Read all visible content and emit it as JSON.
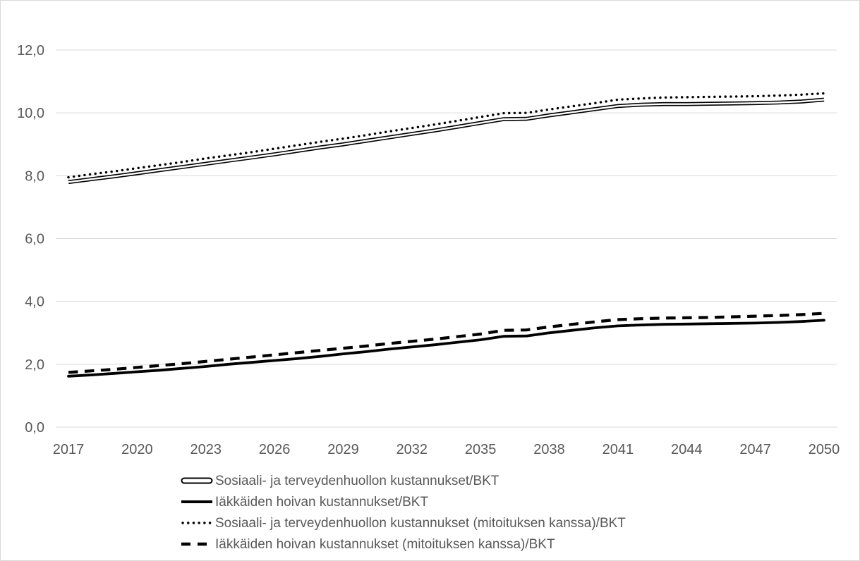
{
  "chart_data": {
    "type": "line",
    "title": "",
    "xlabel": "",
    "ylabel": "",
    "x": [
      2017,
      2018,
      2019,
      2020,
      2021,
      2022,
      2023,
      2024,
      2025,
      2026,
      2027,
      2028,
      2029,
      2030,
      2031,
      2032,
      2033,
      2034,
      2035,
      2036,
      2037,
      2038,
      2039,
      2040,
      2041,
      2042,
      2043,
      2044,
      2045,
      2046,
      2047,
      2048,
      2049,
      2050
    ],
    "x_ticks": [
      2017,
      2020,
      2023,
      2026,
      2029,
      2032,
      2035,
      2038,
      2041,
      2044,
      2047,
      2050
    ],
    "x_tick_labels": [
      "2017",
      "2020",
      "2023",
      "2026",
      "2029",
      "2032",
      "2035",
      "2038",
      "2041",
      "2044",
      "2047",
      "2050"
    ],
    "y_ticks": [
      0,
      2,
      4,
      6,
      8,
      10,
      12
    ],
    "y_tick_labels": [
      "0,0",
      "2,0",
      "4,0",
      "6,0",
      "8,0",
      "10,0",
      "12,0"
    ],
    "ylim": [
      0,
      12
    ],
    "grid": true,
    "legend_position": "bottom-left",
    "series": [
      {
        "name": "Sosiaali- ja terveydenhuollon kustannukset/BKT",
        "style": "double",
        "color": "#000000",
        "values": [
          7.8,
          7.89,
          7.98,
          8.08,
          8.18,
          8.28,
          8.38,
          8.48,
          8.58,
          8.68,
          8.79,
          8.9,
          9.0,
          9.11,
          9.22,
          9.33,
          9.44,
          9.56,
          9.68,
          9.8,
          9.81,
          9.92,
          10.02,
          10.12,
          10.22,
          10.26,
          10.28,
          10.28,
          10.29,
          10.3,
          10.31,
          10.33,
          10.36,
          10.42
        ]
      },
      {
        "name": "Iäkkäiden hoivan kustannukset/BKT",
        "style": "solid",
        "color": "#000000",
        "values": [
          1.62,
          1.66,
          1.71,
          1.76,
          1.81,
          1.87,
          1.93,
          2.0,
          2.06,
          2.12,
          2.18,
          2.25,
          2.33,
          2.4,
          2.48,
          2.55,
          2.62,
          2.7,
          2.78,
          2.89,
          2.9,
          3.0,
          3.08,
          3.16,
          3.22,
          3.25,
          3.27,
          3.28,
          3.29,
          3.3,
          3.31,
          3.33,
          3.36,
          3.4
        ]
      },
      {
        "name": "Sosiaali- ja terveydenhuollon kustannukset (mitoituksen kanssa)/BKT",
        "style": "dotted",
        "color": "#000000",
        "values": [
          7.95,
          8.05,
          8.14,
          8.24,
          8.34,
          8.44,
          8.55,
          8.65,
          8.75,
          8.86,
          8.97,
          9.08,
          9.18,
          9.29,
          9.41,
          9.52,
          9.63,
          9.75,
          9.87,
          9.99,
          10.0,
          10.11,
          10.21,
          10.31,
          10.42,
          10.46,
          10.49,
          10.5,
          10.51,
          10.52,
          10.53,
          10.55,
          10.58,
          10.62
        ]
      },
      {
        "name": "Iäkkäiden hoivan kustannukset (mitoituksen kanssa)/BKT",
        "style": "dashed",
        "color": "#000000",
        "values": [
          1.74,
          1.79,
          1.84,
          1.9,
          1.96,
          2.02,
          2.09,
          2.16,
          2.23,
          2.3,
          2.37,
          2.44,
          2.51,
          2.58,
          2.66,
          2.73,
          2.8,
          2.88,
          2.96,
          3.08,
          3.09,
          3.19,
          3.27,
          3.35,
          3.42,
          3.45,
          3.47,
          3.48,
          3.49,
          3.51,
          3.53,
          3.55,
          3.58,
          3.62
        ]
      }
    ],
    "colors": {
      "line": "#000000",
      "grid": "#d9d9d9",
      "axis_text": "#595959",
      "background": "#ffffff",
      "border": "#d9d9d9"
    }
  }
}
